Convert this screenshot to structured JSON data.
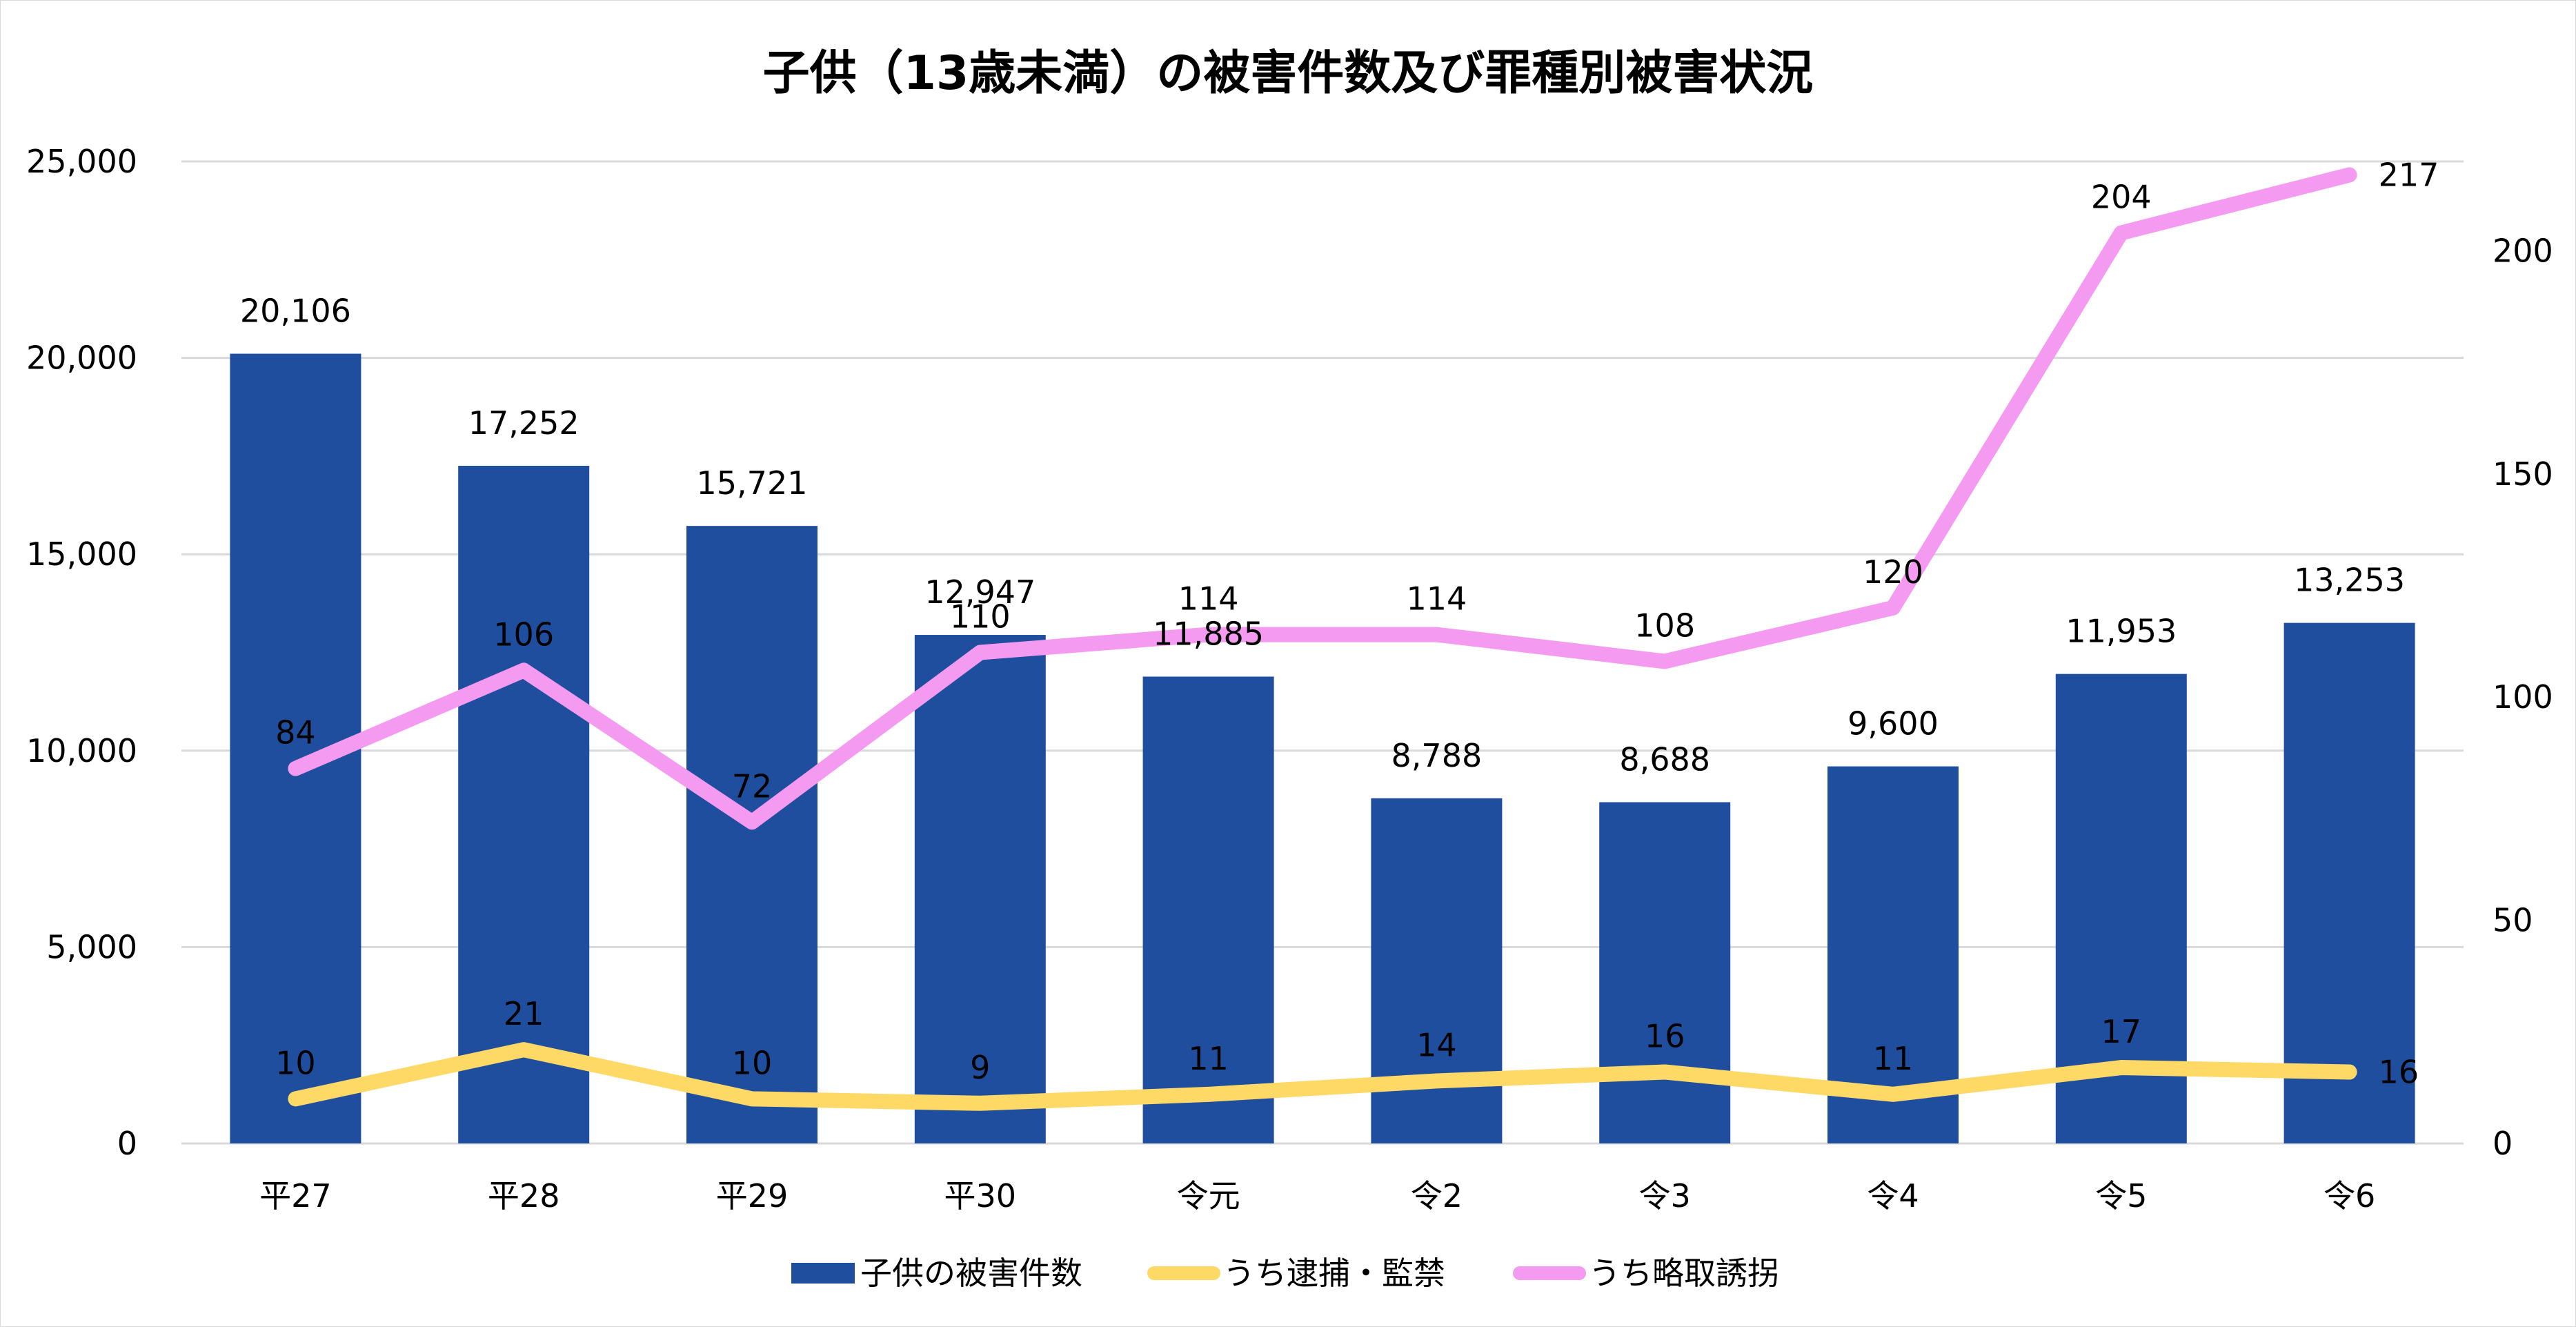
{
  "chart_data": {
    "type": "bar-line-combo",
    "title": "子供（13歳未満）の被害件数及び罪種別被害状況",
    "categories": [
      "平27",
      "平28",
      "平29",
      "平30",
      "令元",
      "令2",
      "令3",
      "令4",
      "令5",
      "令6"
    ],
    "y_left": {
      "ylim": [
        0,
        25000
      ],
      "ticks": [
        0,
        5000,
        10000,
        15000,
        20000,
        25000
      ],
      "tick_labels": [
        "0",
        "5,000",
        "10,000",
        "15,000",
        "20,000",
        "25,000"
      ]
    },
    "y_right": {
      "ylim": [
        0,
        220
      ],
      "ticks": [
        0,
        50,
        100,
        150,
        200
      ],
      "tick_labels": [
        "0",
        "50",
        "100",
        "150",
        "200"
      ]
    },
    "grid": true,
    "legend_position": "bottom",
    "series": [
      {
        "name": "子供の被害件数",
        "kind": "bar",
        "axis": "left",
        "color": "#1f4e9e",
        "values": [
          20106,
          17252,
          15721,
          12947,
          11885,
          8788,
          8688,
          9600,
          11953,
          13253
        ],
        "labels": [
          "20,106",
          "17,252",
          "15,721",
          "12,947",
          "11,885",
          "8,788",
          "8,688",
          "9,600",
          "11,953",
          "13,253"
        ]
      },
      {
        "name": "うち逮捕・監禁",
        "kind": "line",
        "axis": "right",
        "color": "#ffd966",
        "values": [
          10,
          21,
          10,
          9,
          11,
          14,
          16,
          11,
          17,
          16
        ],
        "labels": [
          "10",
          "21",
          "10",
          "9",
          "11",
          "14",
          "16",
          "11",
          "17",
          "16"
        ]
      },
      {
        "name": "うち略取誘拐",
        "kind": "line",
        "axis": "right",
        "color": "#f49af0",
        "values": [
          84,
          106,
          72,
          110,
          114,
          114,
          108,
          120,
          204,
          217
        ],
        "labels": [
          "84",
          "106",
          "72",
          "110",
          "114",
          "114",
          "108",
          "120",
          "204",
          "217"
        ]
      }
    ]
  }
}
